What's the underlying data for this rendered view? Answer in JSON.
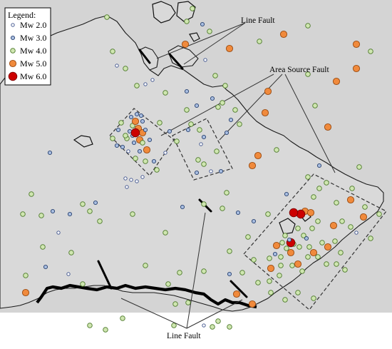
{
  "legend": {
    "title": "Legend:",
    "items": [
      {
        "label": "Mw 2.0",
        "mw": 2,
        "fill": "#ffffff",
        "stroke": "#3a4f8a"
      },
      {
        "label": "Mw 3.0",
        "mw": 3,
        "fill": "#a8bde0",
        "stroke": "#27406f"
      },
      {
        "label": "Mw 4.0",
        "mw": 4,
        "fill": "#cfe6b0",
        "stroke": "#4e7a2c"
      },
      {
        "label": "Mw 5.0",
        "mw": 5,
        "fill": "#f08a3c",
        "stroke": "#9a4a10"
      },
      {
        "label": "Mw 6.0",
        "mw": 6,
        "fill": "#cc0000",
        "stroke": "#7a0000"
      }
    ]
  },
  "annotations": {
    "line_fault_top": "Line Fault",
    "area_source_fault": "Area Source Fault",
    "line_fault_bottom": "Line Fault"
  },
  "colors": {
    "land": "#d9d9d9",
    "sea": "#d4d4d4",
    "border": "#000000"
  }
}
